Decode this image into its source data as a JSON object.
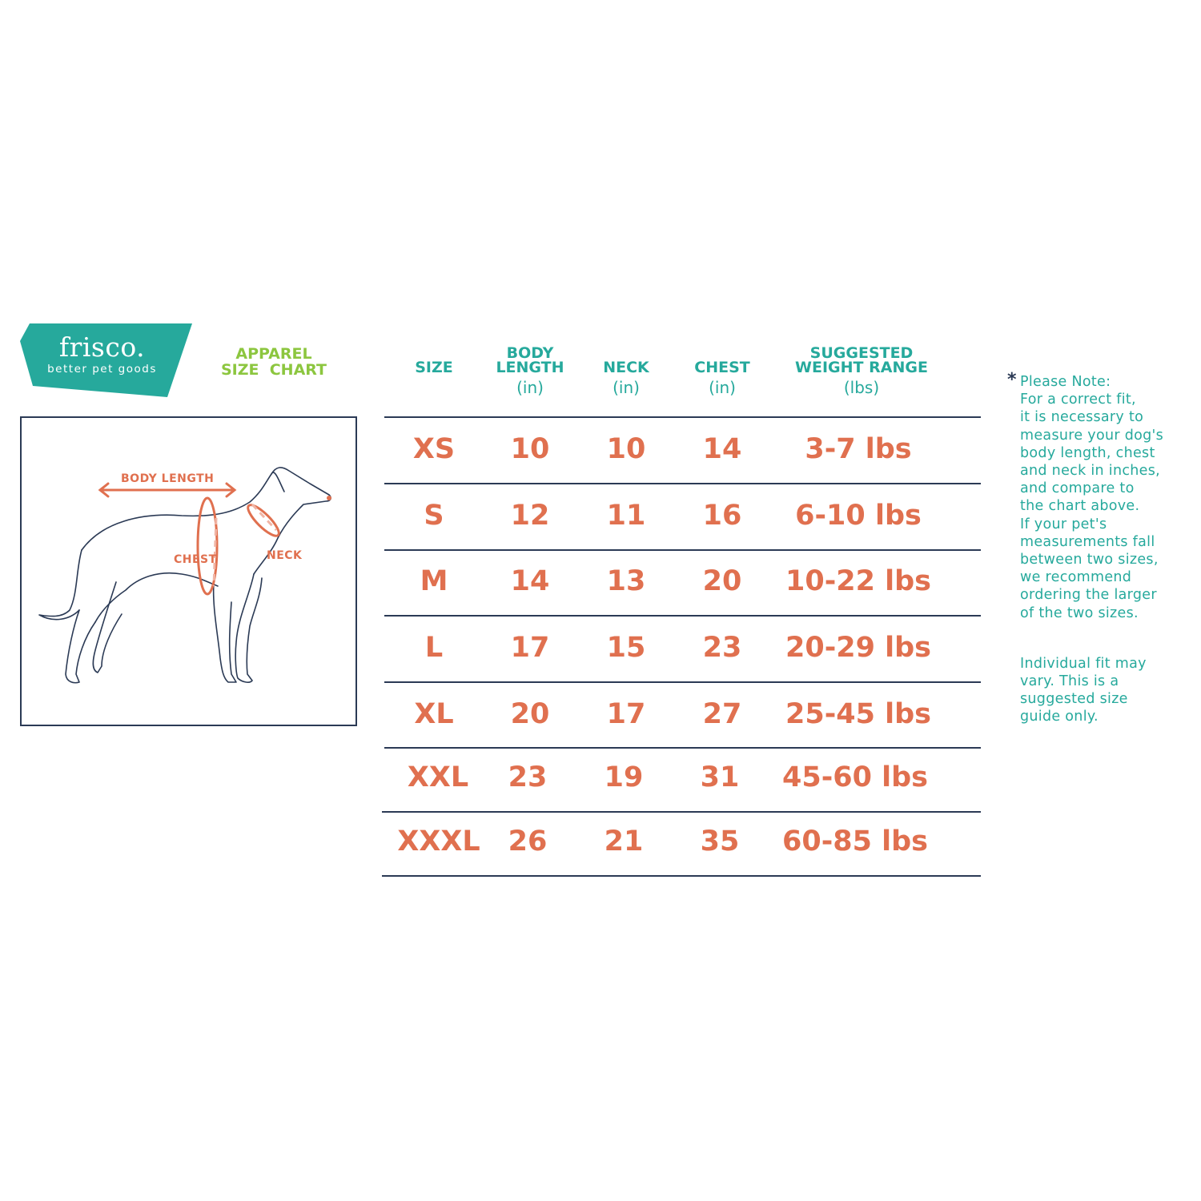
{
  "brand": {
    "name": "frisco.",
    "tagline": "better pet goods",
    "color": "#26a99c"
  },
  "title": {
    "line1": "APPAREL",
    "line2": "SIZE  CHART",
    "color": "#8cc63f"
  },
  "diagram": {
    "body_length": "BODY LENGTH",
    "chest": "CHEST",
    "neck": "NECK",
    "accent": "#e0704f"
  },
  "table": {
    "headers": [
      {
        "label1": "",
        "label2": "SIZE",
        "unit": ""
      },
      {
        "label1": "BODY",
        "label2": "LENGTH",
        "unit": "(in)"
      },
      {
        "label1": "",
        "label2": "NECK",
        "unit": "(in)"
      },
      {
        "label1": "",
        "label2": "CHEST",
        "unit": "(in)"
      },
      {
        "label1": "SUGGESTED",
        "label2": "WEIGHT RANGE",
        "unit": "(lbs)"
      }
    ],
    "rows": [
      [
        "XS",
        "10",
        "10",
        "14",
        "3-7 lbs"
      ],
      [
        "S",
        "12",
        "11",
        "16",
        "6-10 lbs"
      ],
      [
        "M",
        "14",
        "13",
        "20",
        "10-22 lbs"
      ],
      [
        "L",
        "17",
        "15",
        "23",
        "20-29 lbs"
      ],
      [
        "XL",
        "20",
        "17",
        "27",
        "25-45 lbs"
      ],
      [
        "XXL",
        "23",
        "19",
        "31",
        "45-60 lbs"
      ],
      [
        "XXXL",
        "26",
        "21",
        "35",
        "60-85 lbs"
      ]
    ]
  },
  "note": {
    "asterisk": "*",
    "lines1": [
      "Please Note:",
      "For a correct fit,",
      "it is necessary to",
      "measure your dog's",
      "body length, chest",
      "and neck in inches,",
      "and compare to",
      "the chart above.",
      "If your pet's",
      "measurements fall",
      "between two sizes,",
      "we recommend",
      "ordering the larger",
      "of the two sizes."
    ],
    "lines2": [
      "Individual fit may",
      "vary. This is a",
      "suggested size",
      "guide only."
    ]
  }
}
